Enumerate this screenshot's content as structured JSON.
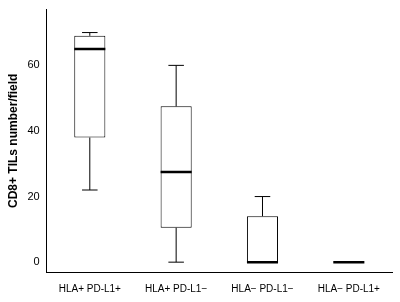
{
  "chart_data": {
    "type": "box",
    "y_label": "CD8+ TILs number/field",
    "categories": [
      "HLA+ PD-L1+",
      "HLA+ PD-L1−",
      "HLA− PD-L1−",
      "HLA− PD-L1+"
    ],
    "values": [
      {
        "min": 22,
        "q1": 38,
        "median": 65,
        "q3": 69,
        "max": 70
      },
      {
        "min": 0,
        "q1": 10.5,
        "median": 27.5,
        "q3": 47.5,
        "max": 60
      },
      {
        "min": 0,
        "q1": 0,
        "median": 0,
        "q3": 14,
        "max": 20
      },
      {
        "min": 0,
        "q1": 0,
        "median": 0,
        "q3": 0,
        "max": 0
      }
    ],
    "color": "#000000",
    "ylim": [
      -3,
      77
    ],
    "yticks": [
      0,
      20,
      40,
      60
    ],
    "grid": false
  }
}
